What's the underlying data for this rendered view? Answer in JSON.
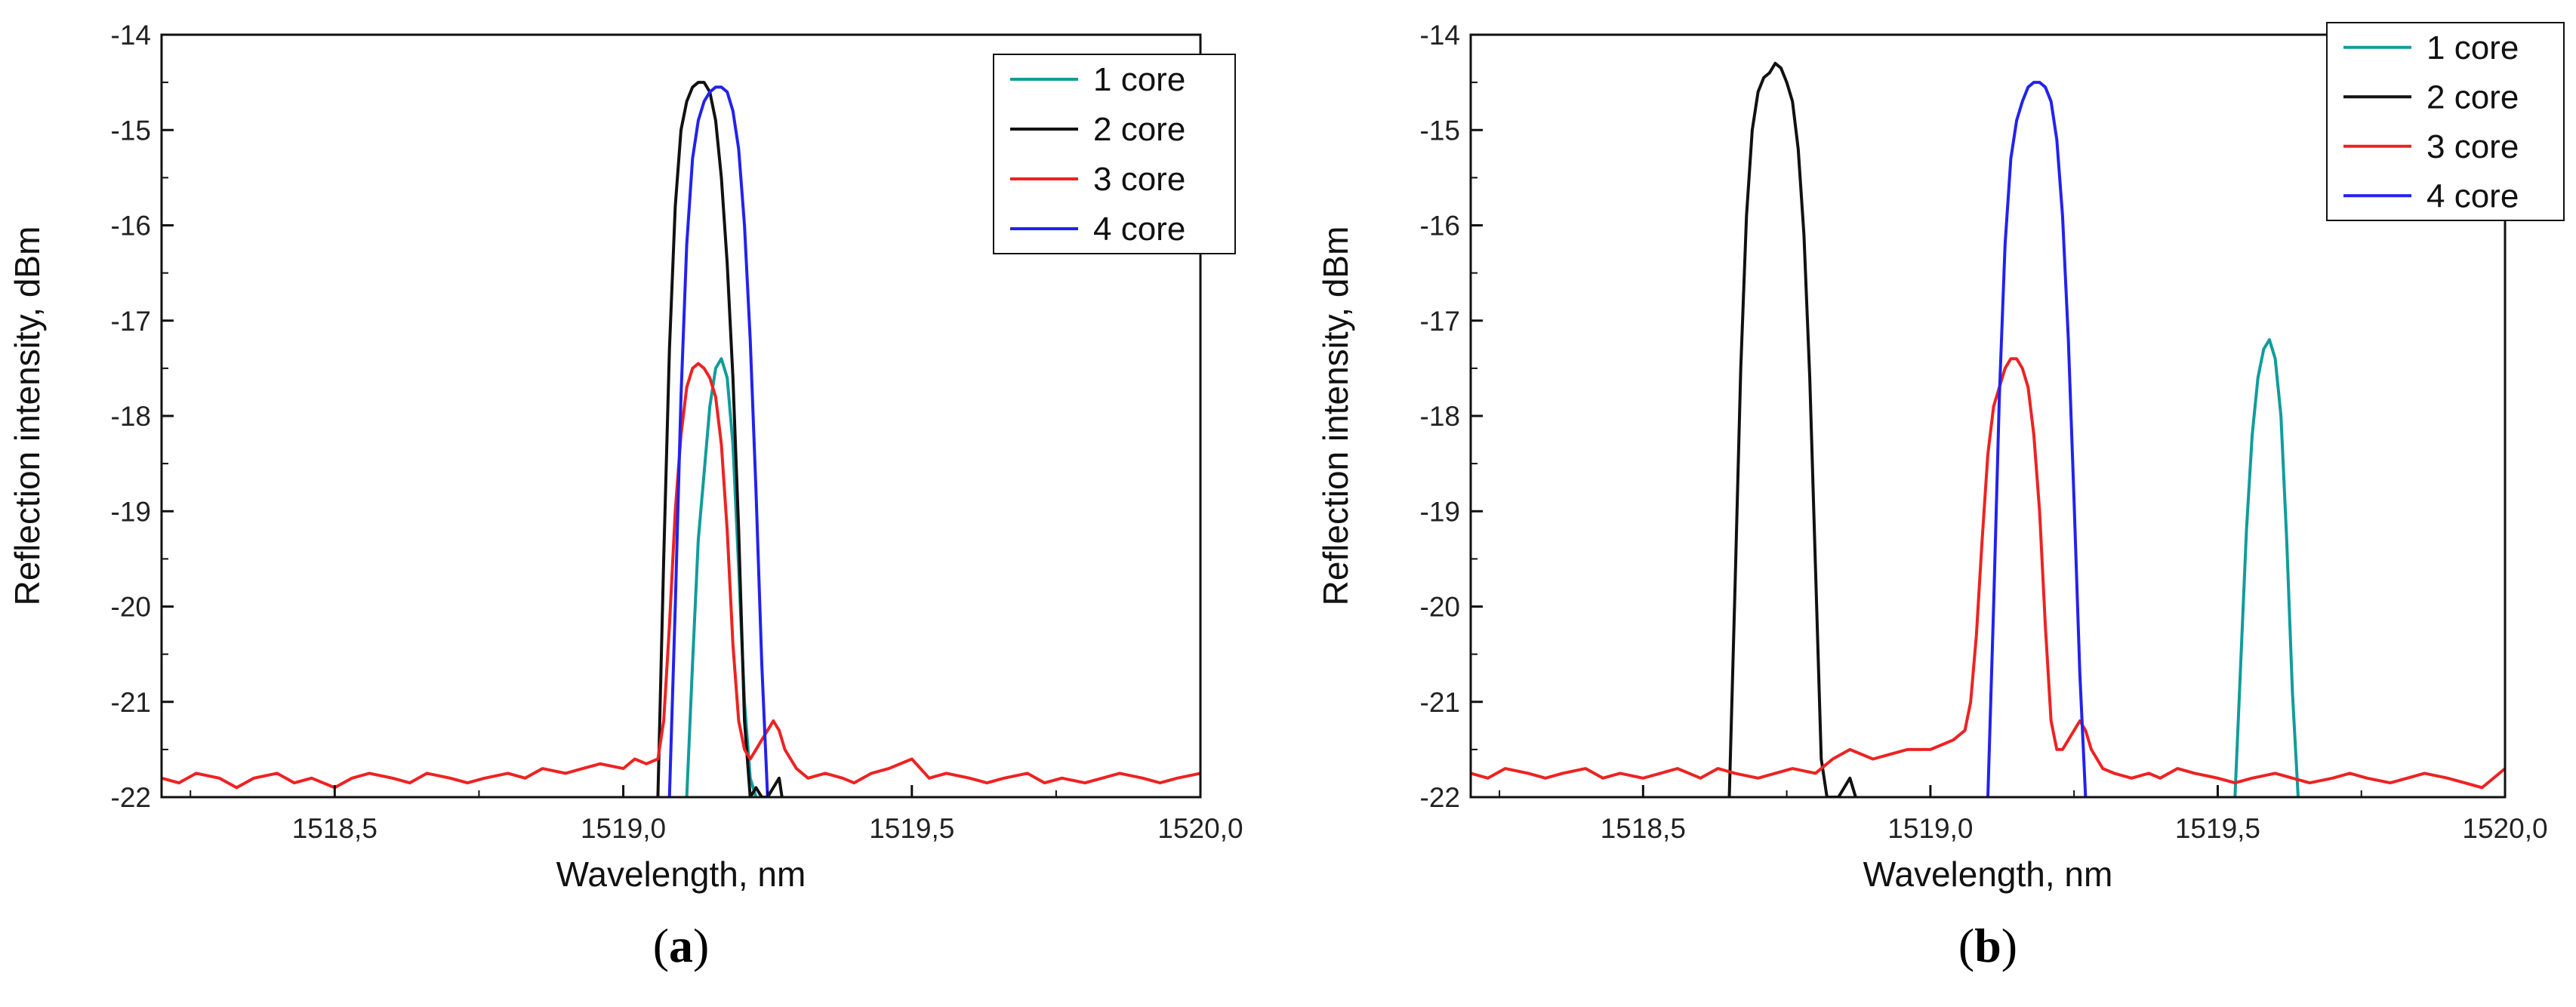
{
  "figure": {
    "panels": [
      "(a)",
      "(b)"
    ]
  },
  "chart_data": [
    {
      "type": "line",
      "panel_label": "a",
      "xlabel": "Wavelength, nm",
      "ylabel": "Reflection intensity, dBm",
      "xlim": [
        1518.2,
        1520.0
      ],
      "ylim": [
        -22,
        -14
      ],
      "xticks": [
        1518.5,
        1519.0,
        1519.5,
        1520.0
      ],
      "xtick_labels": [
        "1518,5",
        "1519,0",
        "1519,5",
        "1520,0"
      ],
      "yticks": [
        -22,
        -21,
        -20,
        -19,
        -18,
        -17,
        -16,
        -15,
        -14
      ],
      "ytick_labels": [
        "-22",
        "-21",
        "-20",
        "-19",
        "-18",
        "-17",
        "-16",
        "-15",
        "-14"
      ],
      "legend_position": "top-right",
      "series": [
        {
          "name": "1 core",
          "color": "#119c9c",
          "x": [
            1519.11,
            1519.12,
            1519.13,
            1519.14,
            1519.15,
            1519.16,
            1519.17,
            1519.18,
            1519.19,
            1519.2,
            1519.21,
            1519.22,
            1519.23
          ],
          "y": [
            -22.0,
            -20.6,
            -19.3,
            -18.6,
            -17.9,
            -17.5,
            -17.4,
            -17.6,
            -18.3,
            -19.6,
            -21.0,
            -21.8,
            -22.0
          ]
        },
        {
          "name": "2 core",
          "color": "#111111",
          "x": [
            1519.06,
            1519.07,
            1519.08,
            1519.09,
            1519.1,
            1519.11,
            1519.12,
            1519.13,
            1519.14,
            1519.15,
            1519.16,
            1519.17,
            1519.18,
            1519.19,
            1519.2,
            1519.21,
            1519.22,
            1519.23,
            1519.24,
            1519.25,
            1519.26,
            1519.27,
            1519.275
          ],
          "y": [
            -22.0,
            -19.5,
            -17.3,
            -15.8,
            -15.0,
            -14.7,
            -14.55,
            -14.5,
            -14.5,
            -14.6,
            -14.9,
            -15.5,
            -16.4,
            -17.6,
            -19.2,
            -21.2,
            -22.0,
            -21.9,
            -22.0,
            -22.0,
            -21.9,
            -21.8,
            -22.0
          ]
        },
        {
          "name": "3 core",
          "color": "#ee2222",
          "x": [
            1518.2,
            1518.23,
            1518.26,
            1518.3,
            1518.33,
            1518.36,
            1518.4,
            1518.43,
            1518.46,
            1518.5,
            1518.53,
            1518.56,
            1518.6,
            1518.63,
            1518.66,
            1518.7,
            1518.73,
            1518.76,
            1518.8,
            1518.83,
            1518.86,
            1518.9,
            1518.93,
            1518.96,
            1519.0,
            1519.02,
            1519.04,
            1519.06,
            1519.07,
            1519.08,
            1519.09,
            1519.1,
            1519.11,
            1519.12,
            1519.13,
            1519.14,
            1519.15,
            1519.16,
            1519.17,
            1519.18,
            1519.19,
            1519.2,
            1519.21,
            1519.22,
            1519.23,
            1519.24,
            1519.25,
            1519.26,
            1519.27,
            1519.28,
            1519.3,
            1519.32,
            1519.35,
            1519.38,
            1519.4,
            1519.43,
            1519.46,
            1519.5,
            1519.53,
            1519.56,
            1519.6,
            1519.63,
            1519.66,
            1519.7,
            1519.73,
            1519.76,
            1519.8,
            1519.83,
            1519.86,
            1519.9,
            1519.93,
            1519.96,
            1520.0
          ],
          "y": [
            -21.8,
            -21.85,
            -21.75,
            -21.8,
            -21.9,
            -21.8,
            -21.75,
            -21.85,
            -21.8,
            -21.9,
            -21.8,
            -21.75,
            -21.8,
            -21.85,
            -21.75,
            -21.8,
            -21.85,
            -21.8,
            -21.75,
            -21.8,
            -21.7,
            -21.75,
            -21.7,
            -21.65,
            -21.7,
            -21.6,
            -21.65,
            -21.6,
            -21.2,
            -20.2,
            -19.0,
            -18.2,
            -17.7,
            -17.5,
            -17.45,
            -17.5,
            -17.6,
            -17.8,
            -18.3,
            -19.2,
            -20.4,
            -21.2,
            -21.5,
            -21.6,
            -21.5,
            -21.4,
            -21.3,
            -21.2,
            -21.3,
            -21.5,
            -21.7,
            -21.8,
            -21.75,
            -21.8,
            -21.85,
            -21.75,
            -21.7,
            -21.6,
            -21.8,
            -21.75,
            -21.8,
            -21.85,
            -21.8,
            -21.75,
            -21.85,
            -21.8,
            -21.85,
            -21.8,
            -21.75,
            -21.8,
            -21.85,
            -21.8,
            -21.75
          ]
        },
        {
          "name": "4 core",
          "color": "#2222ee",
          "x": [
            1519.08,
            1519.09,
            1519.1,
            1519.11,
            1519.12,
            1519.13,
            1519.14,
            1519.15,
            1519.16,
            1519.17,
            1519.18,
            1519.19,
            1519.2,
            1519.21,
            1519.22,
            1519.23,
            1519.24,
            1519.25
          ],
          "y": [
            -22.0,
            -20.0,
            -17.8,
            -16.2,
            -15.3,
            -14.9,
            -14.7,
            -14.6,
            -14.55,
            -14.55,
            -14.6,
            -14.8,
            -15.2,
            -16.0,
            -17.2,
            -18.8,
            -20.6,
            -22.0
          ]
        }
      ]
    },
    {
      "type": "line",
      "panel_label": "b",
      "xlabel": "Wavelength, nm",
      "ylabel": "Reflection intensity, dBm",
      "xlim": [
        1518.2,
        1520.0
      ],
      "ylim": [
        -22,
        -14
      ],
      "xticks": [
        1518.5,
        1519.0,
        1519.5,
        1520.0
      ],
      "xtick_labels": [
        "1518,5",
        "1519,0",
        "1519,5",
        "1520,0"
      ],
      "yticks": [
        -22,
        -21,
        -20,
        -19,
        -18,
        -17,
        -16,
        -15,
        -14
      ],
      "ytick_labels": [
        "-22",
        "-21",
        "-20",
        "-19",
        "-18",
        "-17",
        "-16",
        "-15",
        "-14"
      ],
      "legend_position": "top-right",
      "series": [
        {
          "name": "1 core",
          "color": "#119c9c",
          "x": [
            1519.53,
            1519.54,
            1519.55,
            1519.56,
            1519.57,
            1519.58,
            1519.59,
            1519.6,
            1519.61,
            1519.62,
            1519.63,
            1519.64
          ],
          "y": [
            -22.0,
            -20.6,
            -19.2,
            -18.2,
            -17.6,
            -17.3,
            -17.2,
            -17.4,
            -18.0,
            -19.3,
            -20.9,
            -22.0
          ]
        },
        {
          "name": "2 core",
          "color": "#111111",
          "x": [
            1518.65,
            1518.66,
            1518.67,
            1518.68,
            1518.69,
            1518.7,
            1518.71,
            1518.72,
            1518.73,
            1518.74,
            1518.75,
            1518.76,
            1518.77,
            1518.78,
            1518.79,
            1518.8,
            1518.81,
            1518.82,
            1518.84,
            1518.85,
            1518.86,
            1518.87
          ],
          "y": [
            -22.0,
            -19.8,
            -17.5,
            -15.9,
            -15.0,
            -14.6,
            -14.45,
            -14.4,
            -14.3,
            -14.35,
            -14.5,
            -14.7,
            -15.2,
            -16.1,
            -17.6,
            -19.6,
            -21.6,
            -22.0,
            -22.0,
            -21.9,
            -21.8,
            -22.0
          ]
        },
        {
          "name": "3 core",
          "color": "#ee2222",
          "x": [
            1518.2,
            1518.23,
            1518.26,
            1518.3,
            1518.33,
            1518.36,
            1518.4,
            1518.43,
            1518.46,
            1518.5,
            1518.53,
            1518.56,
            1518.6,
            1518.63,
            1518.66,
            1518.7,
            1518.73,
            1518.76,
            1518.8,
            1518.83,
            1518.86,
            1518.9,
            1518.93,
            1518.96,
            1519.0,
            1519.02,
            1519.04,
            1519.06,
            1519.07,
            1519.08,
            1519.09,
            1519.1,
            1519.11,
            1519.12,
            1519.13,
            1519.14,
            1519.15,
            1519.16,
            1519.17,
            1519.18,
            1519.19,
            1519.2,
            1519.21,
            1519.22,
            1519.23,
            1519.24,
            1519.25,
            1519.26,
            1519.27,
            1519.28,
            1519.3,
            1519.32,
            1519.35,
            1519.38,
            1519.4,
            1519.43,
            1519.46,
            1519.5,
            1519.53,
            1519.56,
            1519.6,
            1519.63,
            1519.66,
            1519.7,
            1519.73,
            1519.76,
            1519.8,
            1519.83,
            1519.86,
            1519.9,
            1519.93,
            1519.96,
            1520.0
          ],
          "y": [
            -21.75,
            -21.8,
            -21.7,
            -21.75,
            -21.8,
            -21.75,
            -21.7,
            -21.8,
            -21.75,
            -21.8,
            -21.75,
            -21.7,
            -21.8,
            -21.7,
            -21.75,
            -21.8,
            -21.75,
            -21.7,
            -21.75,
            -21.6,
            -21.5,
            -21.6,
            -21.55,
            -21.5,
            -21.5,
            -21.45,
            -21.4,
            -21.3,
            -21.0,
            -20.3,
            -19.3,
            -18.4,
            -17.9,
            -17.7,
            -17.5,
            -17.4,
            -17.4,
            -17.5,
            -17.7,
            -18.2,
            -19.0,
            -20.2,
            -21.2,
            -21.5,
            -21.5,
            -21.4,
            -21.3,
            -21.2,
            -21.3,
            -21.5,
            -21.7,
            -21.75,
            -21.8,
            -21.75,
            -21.8,
            -21.7,
            -21.75,
            -21.8,
            -21.85,
            -21.8,
            -21.75,
            -21.8,
            -21.85,
            -21.8,
            -21.75,
            -21.8,
            -21.85,
            -21.8,
            -21.75,
            -21.8,
            -21.85,
            -21.9,
            -21.7
          ]
        },
        {
          "name": "4 core",
          "color": "#2222ee",
          "x": [
            1519.1,
            1519.11,
            1519.12,
            1519.13,
            1519.14,
            1519.15,
            1519.16,
            1519.17,
            1519.18,
            1519.19,
            1519.2,
            1519.21,
            1519.22,
            1519.23,
            1519.24,
            1519.25,
            1519.26,
            1519.27
          ],
          "y": [
            -22.0,
            -20.0,
            -17.8,
            -16.2,
            -15.3,
            -14.9,
            -14.7,
            -14.55,
            -14.5,
            -14.5,
            -14.55,
            -14.7,
            -15.1,
            -15.9,
            -17.2,
            -18.9,
            -20.7,
            -22.0
          ]
        }
      ]
    }
  ]
}
